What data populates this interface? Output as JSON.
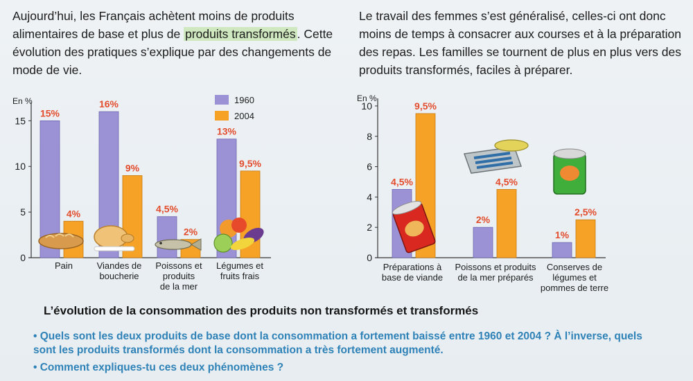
{
  "text": {
    "left_before": "Aujourd’hui, les Français achètent moins de produits alimentaires de base et plus de ",
    "left_highlight": "produits transformés",
    "left_after": ". Cette évolution des pratiques s’explique par des changements de mode de vie.",
    "right": "Le travail des femmes s’est généralisé, celles-ci ont donc moins de temps à consacrer aux courses et à la préparation des repas. Les familles se tournent de plus en plus vers des produits transformés, faciles à préparer."
  },
  "colors": {
    "series_1960": "#9b92d6",
    "series_2004": "#f5a227",
    "value_label": "#e34c2c",
    "question_blue": "#2f82b7",
    "highlight": "#cfe8bf"
  },
  "icons": [
    "bread-icon",
    "chicken-icon",
    "fish-icon",
    "vegetables-icon",
    "canned-meat-icon",
    "sardine-can-icon",
    "vegetable-can-icon"
  ],
  "chart_data": [
    {
      "type": "bar",
      "unit_label": "En %",
      "ylim": [
        0,
        17
      ],
      "yticks": [
        "0",
        "5",
        "10",
        "15"
      ],
      "categories": [
        "Pain",
        "Viandes de boucherie",
        "Poissons et produits de la mer",
        "Légumes et fruits frais"
      ],
      "series": [
        {
          "name": "1960",
          "values": [
            15,
            16,
            4.5,
            13
          ],
          "labels": [
            "15%",
            "16%",
            "4,5%",
            "13%"
          ]
        },
        {
          "name": "2004",
          "values": [
            4,
            9,
            2,
            9.5
          ],
          "labels": [
            "4%",
            "9%",
            "2%",
            "9,5%"
          ]
        }
      ],
      "legend": [
        "1960",
        "2004"
      ],
      "legend_position": "top-right"
    },
    {
      "type": "bar",
      "unit_label": "En %",
      "ylim": [
        0,
        10.5
      ],
      "yticks": [
        "0",
        "2",
        "4",
        "6",
        "8",
        "10"
      ],
      "categories": [
        "Préparations à base de viande",
        "Poissons et produits de la mer préparés",
        "Conserves de légumes et pommes de terre"
      ],
      "series": [
        {
          "name": "1960",
          "values": [
            4.5,
            2,
            1
          ],
          "labels": [
            "4,5%",
            "2%",
            "1%"
          ]
        },
        {
          "name": "2004",
          "values": [
            9.5,
            4.5,
            2.5
          ],
          "labels": [
            "9,5%",
            "4,5%",
            "2,5%"
          ]
        }
      ]
    }
  ],
  "footer": {
    "title": "L’évolution de la consommation des produits non transformés et transformés",
    "question_1": "• Quels sont les deux produits de base dont la consommation a fortement baissé entre 1960 et 2004 ? À l’inverse, quels sont les produits transformés dont la consommation a très fortement augmenté.",
    "question_2": "• Comment expliques-tu ces deux phénomènes ?"
  }
}
